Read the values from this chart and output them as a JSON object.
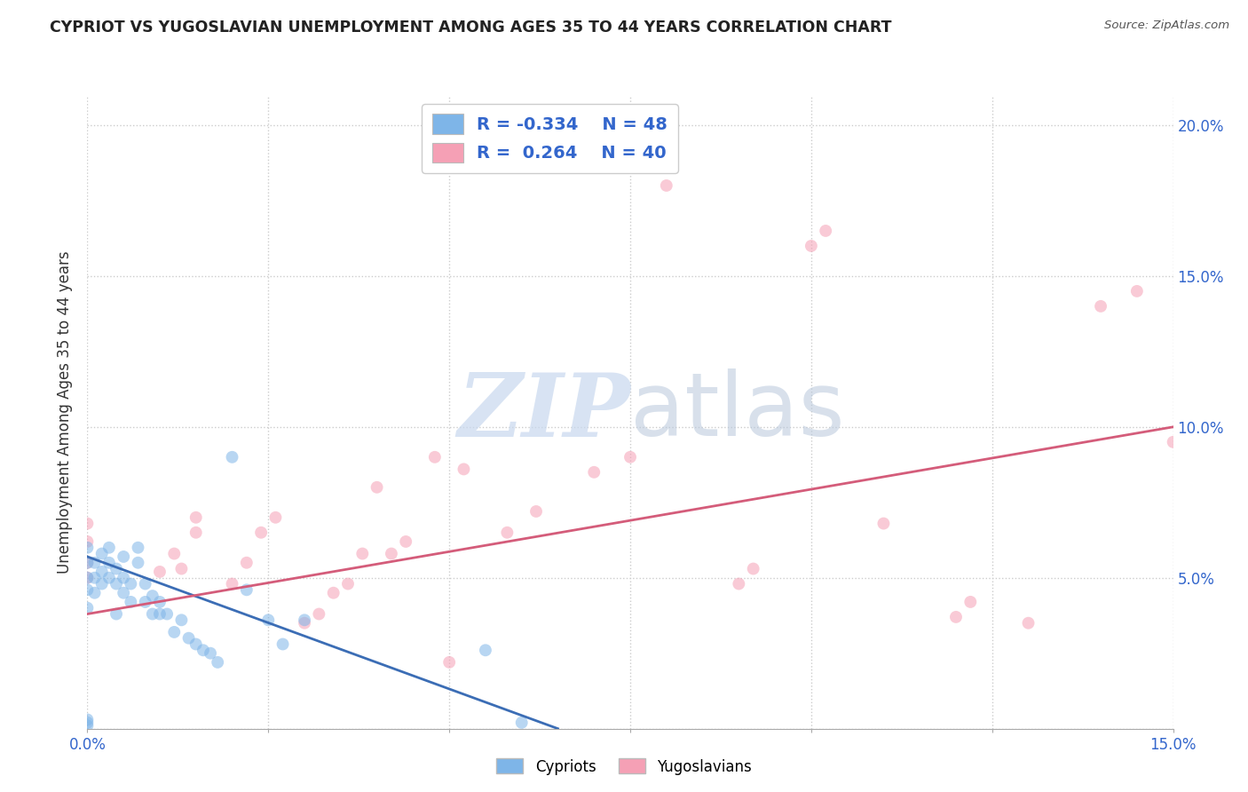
{
  "title": "CYPRIOT VS YUGOSLAVIAN UNEMPLOYMENT AMONG AGES 35 TO 44 YEARS CORRELATION CHART",
  "source": "Source: ZipAtlas.com",
  "ylabel": "Unemployment Among Ages 35 to 44 years",
  "xlim": [
    0.0,
    0.15
  ],
  "ylim": [
    0.0,
    0.21
  ],
  "xticks": [
    0.0,
    0.025,
    0.05,
    0.075,
    0.1,
    0.125,
    0.15
  ],
  "yticks": [
    0.0,
    0.05,
    0.1,
    0.15,
    0.2
  ],
  "background_color": "#ffffff",
  "grid_color": "#cccccc",
  "legend_R_cypriot": "-0.334",
  "legend_N_cypriot": "48",
  "legend_R_yugoslav": " 0.264",
  "legend_N_yugoslav": "40",
  "cypriot_color": "#7EB5E8",
  "yugoslav_color": "#F5A0B5",
  "line_cypriot_color": "#3B6DB5",
  "line_yugoslav_color": "#D45C7A",
  "cypriot_x": [
    0.0,
    0.0,
    0.0,
    0.0,
    0.0,
    0.0,
    0.0,
    0.0,
    0.001,
    0.001,
    0.001,
    0.002,
    0.002,
    0.002,
    0.003,
    0.003,
    0.003,
    0.004,
    0.004,
    0.004,
    0.005,
    0.005,
    0.005,
    0.006,
    0.006,
    0.007,
    0.007,
    0.008,
    0.008,
    0.009,
    0.009,
    0.01,
    0.01,
    0.011,
    0.012,
    0.013,
    0.014,
    0.015,
    0.016,
    0.017,
    0.018,
    0.02,
    0.022,
    0.025,
    0.027,
    0.03,
    0.055,
    0.06
  ],
  "cypriot_y": [
    0.001,
    0.002,
    0.003,
    0.04,
    0.046,
    0.05,
    0.055,
    0.06,
    0.045,
    0.05,
    0.055,
    0.048,
    0.052,
    0.058,
    0.05,
    0.055,
    0.06,
    0.038,
    0.048,
    0.053,
    0.045,
    0.05,
    0.057,
    0.042,
    0.048,
    0.055,
    0.06,
    0.042,
    0.048,
    0.038,
    0.044,
    0.038,
    0.042,
    0.038,
    0.032,
    0.036,
    0.03,
    0.028,
    0.026,
    0.025,
    0.022,
    0.09,
    0.046,
    0.036,
    0.028,
    0.036,
    0.026,
    0.002
  ],
  "yugoslav_x": [
    0.0,
    0.0,
    0.0,
    0.0,
    0.01,
    0.012,
    0.013,
    0.015,
    0.015,
    0.02,
    0.022,
    0.024,
    0.026,
    0.03,
    0.032,
    0.034,
    0.036,
    0.038,
    0.04,
    0.042,
    0.044,
    0.048,
    0.05,
    0.052,
    0.058,
    0.062,
    0.07,
    0.075,
    0.08,
    0.09,
    0.092,
    0.1,
    0.102,
    0.11,
    0.12,
    0.122,
    0.13,
    0.14,
    0.145,
    0.15
  ],
  "yugoslav_y": [
    0.05,
    0.055,
    0.062,
    0.068,
    0.052,
    0.058,
    0.053,
    0.065,
    0.07,
    0.048,
    0.055,
    0.065,
    0.07,
    0.035,
    0.038,
    0.045,
    0.048,
    0.058,
    0.08,
    0.058,
    0.062,
    0.09,
    0.022,
    0.086,
    0.065,
    0.072,
    0.085,
    0.09,
    0.18,
    0.048,
    0.053,
    0.16,
    0.165,
    0.068,
    0.037,
    0.042,
    0.035,
    0.14,
    0.145,
    0.095
  ],
  "cypriot_line_x": [
    0.0,
    0.065
  ],
  "cypriot_line_y": [
    0.057,
    0.0
  ],
  "yugoslav_line_x": [
    0.0,
    0.15
  ],
  "yugoslav_line_y": [
    0.038,
    0.1
  ],
  "marker_size": 100,
  "marker_alpha": 0.55
}
